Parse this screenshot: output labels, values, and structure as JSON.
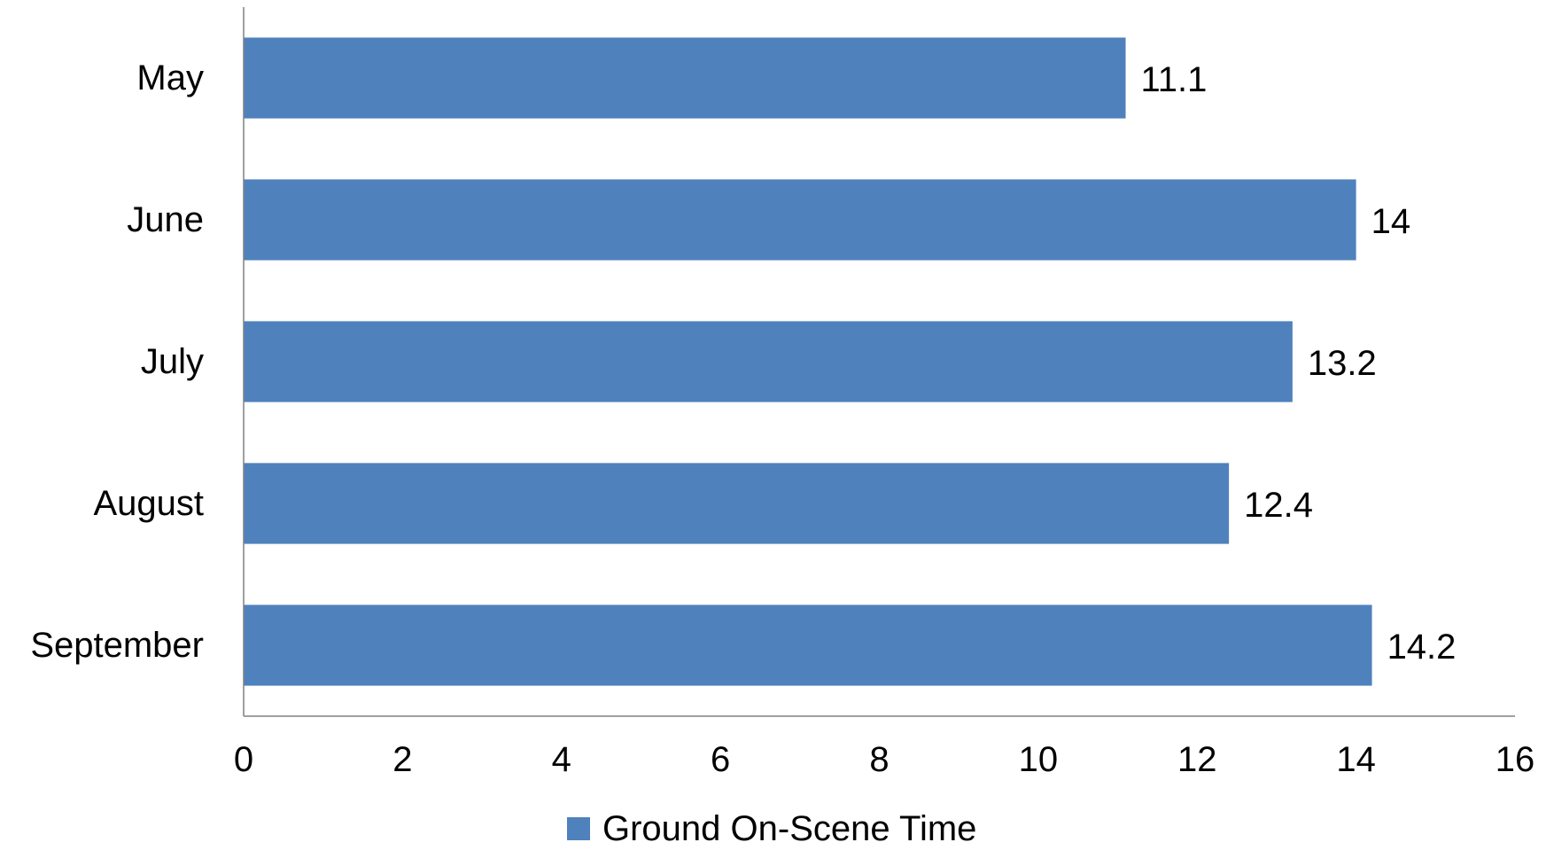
{
  "chart_data": {
    "type": "bar",
    "orientation": "horizontal",
    "categories": [
      "May",
      "June",
      "July",
      "August",
      "September"
    ],
    "series": [
      {
        "name": "Ground On-Scene Time",
        "values": [
          11.1,
          14,
          13.2,
          12.4,
          14.2
        ],
        "value_labels": [
          "11.1",
          "14",
          "13.2",
          "12.4",
          "14.2"
        ],
        "color": "#4F81BD"
      }
    ],
    "xlim": [
      0,
      16
    ],
    "x_ticks": [
      0,
      2,
      4,
      6,
      8,
      10,
      12,
      14,
      16
    ],
    "x_tick_labels": [
      "0",
      "2",
      "4",
      "6",
      "8",
      "10",
      "12",
      "14",
      "16"
    ],
    "title": "",
    "xlabel": "",
    "ylabel": "",
    "grid": false,
    "legend": {
      "position": "bottom",
      "entries": [
        "Ground On-Scene Time"
      ]
    },
    "axis_color": "#808080"
  }
}
